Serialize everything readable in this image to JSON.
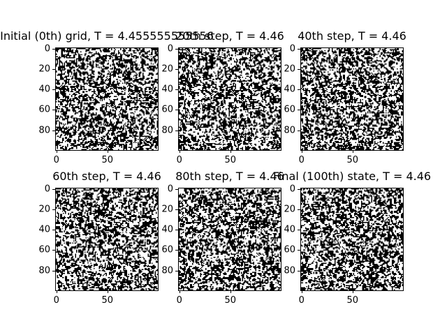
{
  "chart_data": [
    {
      "type": "heatmap",
      "title": "Initial (0th) grid, T = 4.455555555556",
      "grid_size": 100,
      "colors": {
        "spin_up": "#ffffff",
        "spin_down": "#000000"
      },
      "xlim": [
        0,
        99
      ],
      "ylim": [
        99,
        0
      ],
      "xticks": [
        "0",
        "50"
      ],
      "yticks": [
        "0",
        "20",
        "40",
        "60",
        "80"
      ],
      "seed": 11
    },
    {
      "type": "heatmap",
      "title": "20th step, T = 4.46",
      "grid_size": 100,
      "colors": {
        "spin_up": "#ffffff",
        "spin_down": "#000000"
      },
      "xlim": [
        0,
        99
      ],
      "ylim": [
        99,
        0
      ],
      "xticks": [
        "0",
        "50"
      ],
      "yticks": [
        "0",
        "20",
        "40",
        "60",
        "80"
      ],
      "seed": 23
    },
    {
      "type": "heatmap",
      "title": "40th step, T = 4.46",
      "grid_size": 100,
      "colors": {
        "spin_up": "#ffffff",
        "spin_down": "#000000"
      },
      "xlim": [
        0,
        99
      ],
      "ylim": [
        99,
        0
      ],
      "xticks": [
        "0",
        "50"
      ],
      "yticks": [
        "0",
        "20",
        "40",
        "60",
        "80"
      ],
      "seed": 37
    },
    {
      "type": "heatmap",
      "title": "60th step, T = 4.46",
      "grid_size": 100,
      "colors": {
        "spin_up": "#ffffff",
        "spin_down": "#000000"
      },
      "xlim": [
        0,
        99
      ],
      "ylim": [
        99,
        0
      ],
      "xticks": [
        "0",
        "50"
      ],
      "yticks": [
        "0",
        "20",
        "40",
        "60",
        "80"
      ],
      "seed": 41
    },
    {
      "type": "heatmap",
      "title": "80th step, T = 4.46",
      "grid_size": 100,
      "colors": {
        "spin_up": "#ffffff",
        "spin_down": "#000000"
      },
      "xlim": [
        0,
        99
      ],
      "ylim": [
        99,
        0
      ],
      "xticks": [
        "0",
        "50"
      ],
      "yticks": [
        "0",
        "20",
        "40",
        "60",
        "80"
      ],
      "seed": 53
    },
    {
      "type": "heatmap",
      "title": "Final (100th) state, T = 4.46",
      "grid_size": 100,
      "colors": {
        "spin_up": "#ffffff",
        "spin_down": "#000000"
      },
      "xlim": [
        0,
        99
      ],
      "ylim": [
        99,
        0
      ],
      "xticks": [
        "0",
        "50"
      ],
      "yticks": [
        "0",
        "20",
        "40",
        "60",
        "80"
      ],
      "seed": 67
    }
  ]
}
